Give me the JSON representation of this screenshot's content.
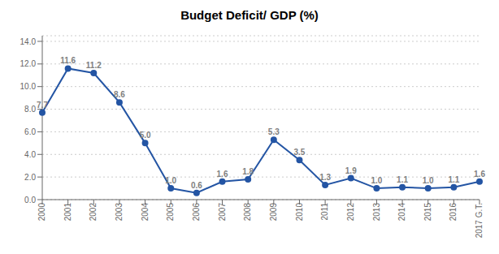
{
  "chart_data": {
    "type": "line",
    "title": "Budget Deficit/ GDP (%)",
    "categories": [
      "2000",
      "2001",
      "2002",
      "2003",
      "2004",
      "2005",
      "2006",
      "2007",
      "2008",
      "2009",
      "2010",
      "2011",
      "2012",
      "2013",
      "2014",
      "2015",
      "2016",
      "2017 G.T."
    ],
    "values": [
      7.7,
      11.6,
      11.2,
      8.6,
      5.0,
      1.0,
      0.6,
      1.6,
      1.8,
      5.3,
      3.5,
      1.3,
      1.9,
      1.0,
      1.1,
      1.0,
      1.1,
      1.6
    ],
    "value_labels": [
      "7.7",
      "11.6",
      "11.2",
      "8.6",
      "5.0",
      "1.0",
      "0.6",
      "1.6",
      "1.8",
      "5.3",
      "3.5",
      "1.3",
      "1.9",
      "1.0",
      "1.1",
      "1.0",
      "1.1",
      "1.6"
    ],
    "color": "#2455A4",
    "marker": "circle",
    "data_labels": true,
    "grid": true,
    "ylim": [
      0.0,
      14.5
    ],
    "yticks": [
      {
        "value": 0,
        "label": "0.0"
      },
      {
        "value": 2,
        "label": "2.0"
      },
      {
        "value": 4,
        "label": "4.0"
      },
      {
        "value": 6,
        "label": "6.0"
      },
      {
        "value": 8,
        "label": "8.0"
      },
      {
        "value": 10,
        "label": "10.0"
      },
      {
        "value": 12,
        "label": "12.0"
      },
      {
        "value": 14,
        "label": "14.0"
      }
    ]
  }
}
